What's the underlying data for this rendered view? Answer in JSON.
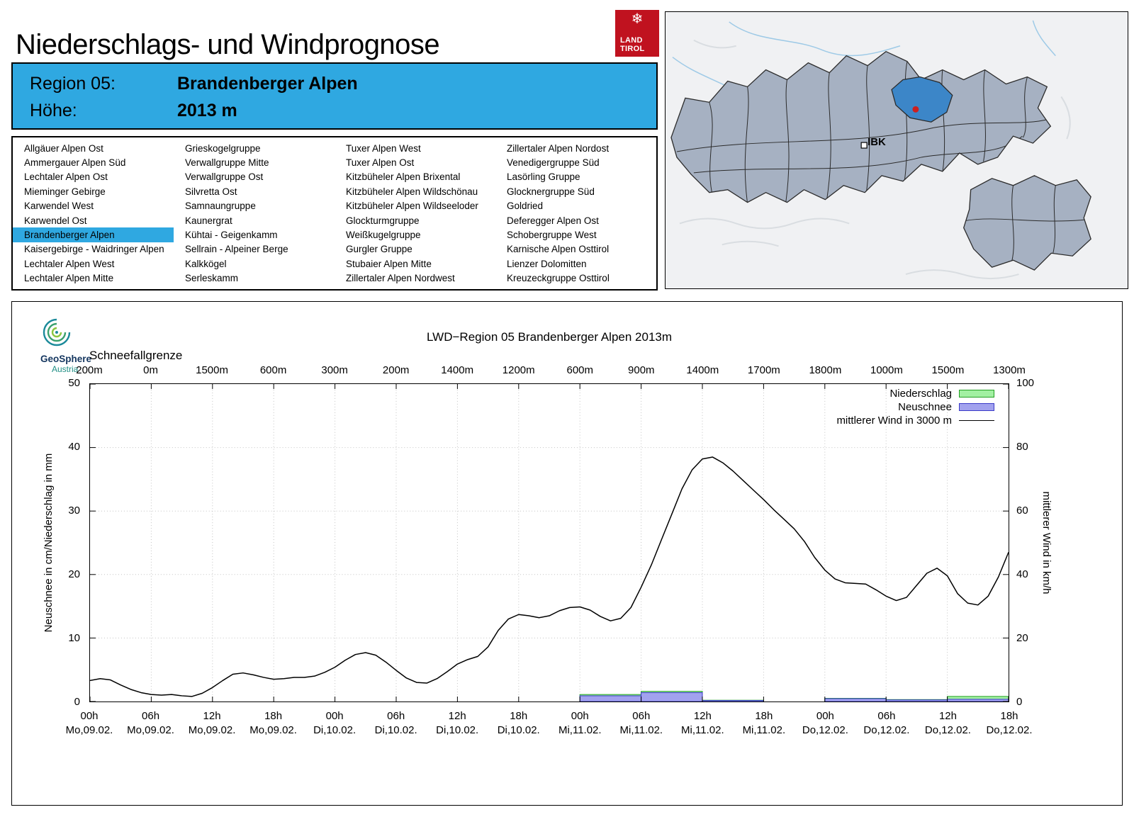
{
  "page": {
    "title": "Niederschlags- und Windprognose"
  },
  "land_tirol_logo": {
    "line1": "LAND",
    "line2": "TIROL",
    "color": "#c0121f",
    "icon": "snowflake-icon"
  },
  "header_box": {
    "region_label": "Region 05:",
    "region_value": "Brandenberger Alpen",
    "altitude_label": "Höhe:",
    "altitude_value": "2013 m",
    "bg_color": "#2fa8e1"
  },
  "regions": {
    "highlighted": "Brandenberger Alpen",
    "columns": [
      [
        "Allgäuer Alpen Ost",
        "Ammergauer Alpen Süd",
        "Lechtaler Alpen Ost",
        "Mieminger Gebirge",
        "Karwendel West",
        "Karwendel Ost",
        "Brandenberger Alpen",
        "Kaisergebirge - Waidringer Alpen",
        "Lechtaler Alpen West",
        "Lechtaler Alpen Mitte"
      ],
      [
        "Grieskogelgruppe",
        "Verwallgruppe Mitte",
        "Verwallgruppe Ost",
        "Silvretta Ost",
        "Samnaungruppe",
        "Kaunergrat",
        "Kühtai - Geigenkamm",
        "Sellrain - Alpeiner Berge",
        "Kalkkögel",
        "Serleskamm"
      ],
      [
        "Tuxer Alpen West",
        "Tuxer Alpen Ost",
        "Kitzbüheler Alpen Brixental",
        "Kitzbüheler Alpen Wildschönau",
        "Kitzbüheler Alpen Wildseeloder",
        "Glockturmgruppe",
        "Weißkugelgruppe",
        "Gurgler Gruppe",
        "Stubaier Alpen Mitte",
        "Zillertaler Alpen Nordwest"
      ],
      [
        "Zillertaler Alpen Nordost",
        "Venedigergruppe Süd",
        "Lasörling Gruppe",
        "Glocknergruppe Süd",
        "Goldried",
        "Deferegger Alpen Ost",
        "Schobergruppe West",
        "Karnische Alpen Osttirol",
        "Lienzer Dolomitten",
        "Kreuzeckgruppe Osttirol"
      ]
    ]
  },
  "map": {
    "city_label": "IBK",
    "highlight_color": "#3c86c8",
    "marker_color": "#cc2020",
    "region_fill": "#a6b1c2"
  },
  "geosphere_logo": {
    "line1": "GeoSphere",
    "line2": "Austria"
  },
  "chart_data": {
    "type": "line+bar",
    "title": "LWD−Region 05 Brandenberger Alpen 2013m",
    "snowfall_label": "Schneefallgrenze",
    "snowfall_line": {
      "unit": "m",
      "tick_values": [
        "200m",
        "0m",
        "1500m",
        "600m",
        "300m",
        "200m",
        "1400m",
        "1200m",
        "600m",
        "900m",
        "1400m",
        "1700m",
        "1800m",
        "1000m",
        "1500m",
        "1300m"
      ]
    },
    "ylabel_left": "Neuschnee in cm/Niederschlag in mm",
    "ylabel_right": "mittlerer Wind in km/h",
    "ylim_left": [
      0,
      50
    ],
    "ylim_right": [
      0,
      100
    ],
    "yticks_left": [
      0,
      10,
      20,
      30,
      40,
      50
    ],
    "yticks_right": [
      0,
      20,
      40,
      60,
      80,
      100
    ],
    "x_hours_range": [
      0,
      90
    ],
    "x_tick_step_hours": 6,
    "x_ticks": [
      {
        "time": "00h",
        "date": "Mo,09.02."
      },
      {
        "time": "06h",
        "date": "Mo,09.02."
      },
      {
        "time": "12h",
        "date": "Mo,09.02."
      },
      {
        "time": "18h",
        "date": "Mo,09.02."
      },
      {
        "time": "00h",
        "date": "Di,10.02."
      },
      {
        "time": "06h",
        "date": "Di,10.02."
      },
      {
        "time": "12h",
        "date": "Di,10.02."
      },
      {
        "time": "18h",
        "date": "Di,10.02."
      },
      {
        "time": "00h",
        "date": "Mi,11.02."
      },
      {
        "time": "06h",
        "date": "Mi,11.02."
      },
      {
        "time": "12h",
        "date": "Mi,11.02."
      },
      {
        "time": "18h",
        "date": "Mi,11.02."
      },
      {
        "time": "00h",
        "date": "Do,12.02."
      },
      {
        "time": "06h",
        "date": "Do,12.02."
      },
      {
        "time": "12h",
        "date": "Do,12.02."
      },
      {
        "time": "18h",
        "date": "Do,12.02."
      }
    ],
    "legend": [
      {
        "label": "Niederschlag",
        "type": "box",
        "fill": "#a2f0a2",
        "stroke": "#22a022"
      },
      {
        "label": "Neuschnee",
        "type": "box",
        "fill": "#a2a2ee",
        "stroke": "#3a3ac8"
      },
      {
        "label": "mittlerer Wind in 3000 m",
        "type": "line",
        "stroke": "#000000"
      }
    ],
    "wind_series": {
      "name": "mittlerer Wind in 3000 m",
      "axis": "right",
      "unit": "km/h",
      "start_hour": 0,
      "step_hours": 1,
      "values_kmh": [
        6.6,
        7.2,
        6.8,
        5.2,
        3.8,
        2.8,
        2.2,
        2.0,
        2.2,
        1.8,
        1.6,
        2.6,
        4.4,
        6.6,
        8.6,
        9.0,
        8.4,
        7.6,
        7.0,
        7.2,
        7.6,
        7.6,
        8.0,
        9.2,
        10.8,
        13.0,
        14.8,
        15.4,
        14.6,
        12.4,
        9.8,
        7.4,
        6.0,
        5.8,
        7.2,
        9.4,
        11.8,
        13.2,
        14.2,
        17.2,
        22.4,
        26.0,
        27.4,
        27.0,
        26.4,
        27.0,
        28.6,
        29.6,
        29.8,
        28.8,
        26.8,
        25.4,
        26.2,
        29.6,
        36.0,
        43.0,
        51.0,
        59.0,
        67.0,
        73.0,
        76.4,
        77.0,
        75.2,
        72.6,
        69.6,
        66.6,
        63.6,
        60.4,
        57.4,
        54.4,
        50.4,
        45.4,
        41.4,
        38.6,
        37.4,
        37.2,
        37.0,
        35.2,
        33.2,
        31.8,
        32.8,
        36.6,
        40.4,
        42.0,
        39.6,
        34.0,
        31.0,
        30.4,
        33.2,
        39.2,
        47.0
      ]
    },
    "precip_bars": {
      "name": "Niederschlag",
      "axis": "left",
      "unit": "mm",
      "segments": [
        {
          "from_hour": 48,
          "to_hour": 54,
          "value": 1.1
        },
        {
          "from_hour": 54,
          "to_hour": 60,
          "value": 1.6
        },
        {
          "from_hour": 60,
          "to_hour": 66,
          "value": 0.2
        },
        {
          "from_hour": 72,
          "to_hour": 78,
          "value": 0.5
        },
        {
          "from_hour": 78,
          "to_hour": 84,
          "value": 0.3
        },
        {
          "from_hour": 84,
          "to_hour": 90,
          "value": 0.8
        }
      ]
    },
    "snow_bars": {
      "name": "Neuschnee",
      "axis": "left",
      "unit": "cm",
      "segments": [
        {
          "from_hour": 48,
          "to_hour": 54,
          "value": 0.9
        },
        {
          "from_hour": 54,
          "to_hour": 60,
          "value": 1.4
        },
        {
          "from_hour": 60,
          "to_hour": 66,
          "value": 0.15
        },
        {
          "from_hour": 72,
          "to_hour": 78,
          "value": 0.45
        },
        {
          "from_hour": 78,
          "to_hour": 84,
          "value": 0.25
        },
        {
          "from_hour": 84,
          "to_hour": 90,
          "value": 0.35
        }
      ]
    }
  }
}
